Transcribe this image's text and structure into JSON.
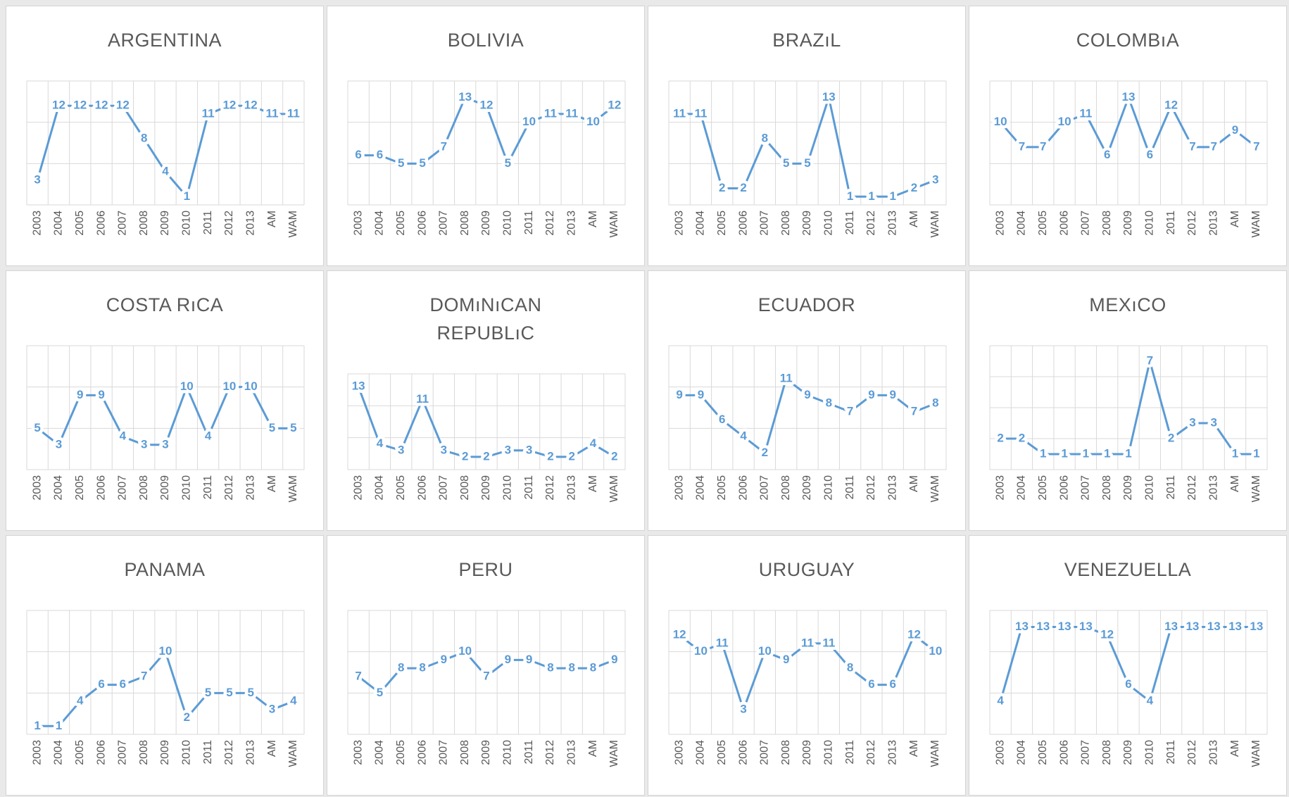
{
  "chart_data": [
    {
      "type": "line",
      "title": "ARGENTINA",
      "color": "#5b9bd5",
      "ylim": [
        0,
        15
      ],
      "yticks": [
        0,
        5,
        10,
        15
      ],
      "grid": true,
      "categories": [
        "2003",
        "2004",
        "2005",
        "2006",
        "2007",
        "2008",
        "2009",
        "2010",
        "2011",
        "2012",
        "2013",
        "AM",
        "WAM"
      ],
      "values": [
        3,
        12,
        12,
        12,
        12,
        8,
        4,
        1,
        11,
        12,
        12,
        11,
        11
      ]
    },
    {
      "type": "line",
      "title": "BOLIVIA",
      "color": "#5b9bd5",
      "ylim": [
        0,
        15
      ],
      "yticks": [
        0,
        5,
        10,
        15
      ],
      "grid": true,
      "categories": [
        "2003",
        "2004",
        "2005",
        "2006",
        "2007",
        "2008",
        "2009",
        "2010",
        "2011",
        "2012",
        "2013",
        "AM",
        "WAM"
      ],
      "values": [
        6,
        6,
        5,
        5,
        7,
        13,
        12,
        5,
        10,
        11,
        11,
        10,
        12
      ]
    },
    {
      "type": "line",
      "title": "BRAZıL",
      "color": "#5b9bd5",
      "ylim": [
        0,
        15
      ],
      "yticks": [
        0,
        5,
        10,
        15
      ],
      "grid": true,
      "categories": [
        "2003",
        "2004",
        "2005",
        "2006",
        "2007",
        "2008",
        "2009",
        "2010",
        "2011",
        "2012",
        "2013",
        "AM",
        "WAM"
      ],
      "values": [
        11,
        11,
        2,
        2,
        8,
        5,
        5,
        13,
        1,
        1,
        1,
        2,
        3
      ]
    },
    {
      "type": "line",
      "title": "COLOMBıA",
      "color": "#5b9bd5",
      "ylim": [
        0,
        15
      ],
      "yticks": [
        0,
        5,
        10,
        15
      ],
      "grid": true,
      "categories": [
        "2003",
        "2004",
        "2005",
        "2006",
        "2007",
        "2008",
        "2009",
        "2010",
        "2011",
        "2012",
        "2013",
        "AM",
        "WAM"
      ],
      "values": [
        10,
        7,
        7,
        10,
        11,
        6,
        13,
        6,
        12,
        7,
        7,
        9,
        7
      ]
    },
    {
      "type": "line",
      "title": "COSTA RıCA",
      "color": "#5b9bd5",
      "ylim": [
        0,
        15
      ],
      "yticks": [
        0,
        5,
        10,
        15
      ],
      "grid": true,
      "categories": [
        "2003",
        "2004",
        "2005",
        "2006",
        "2007",
        "2008",
        "2009",
        "2010",
        "2011",
        "2012",
        "2013",
        "AM",
        "WAM"
      ],
      "values": [
        5,
        3,
        9,
        9,
        4,
        3,
        3,
        10,
        4,
        10,
        10,
        5,
        5
      ]
    },
    {
      "type": "line",
      "title": "DOMıNıCAN REPUBLıC",
      "color": "#5b9bd5",
      "ylim": [
        0,
        15
      ],
      "yticks": [
        0,
        5,
        10,
        15
      ],
      "grid": true,
      "categories": [
        "2003",
        "2004",
        "2005",
        "2006",
        "2007",
        "2008",
        "2009",
        "2010",
        "2011",
        "2012",
        "2013",
        "AM",
        "WAM"
      ],
      "values": [
        13,
        4,
        3,
        11,
        3,
        2,
        2,
        3,
        3,
        2,
        2,
        4,
        2
      ]
    },
    {
      "type": "line",
      "title": "ECUADOR",
      "color": "#5b9bd5",
      "ylim": [
        0,
        15
      ],
      "yticks": [
        0,
        5,
        10,
        15
      ],
      "grid": true,
      "categories": [
        "2003",
        "2004",
        "2005",
        "2006",
        "2007",
        "2008",
        "2009",
        "2010",
        "2011",
        "2012",
        "2013",
        "AM",
        "WAM"
      ],
      "values": [
        9,
        9,
        6,
        4,
        2,
        11,
        9,
        8,
        7,
        9,
        9,
        7,
        8
      ]
    },
    {
      "type": "line",
      "title": "MEXıCO",
      "color": "#5b9bd5",
      "ylim": [
        0,
        8
      ],
      "yticks": [
        0,
        2,
        4,
        6,
        8
      ],
      "grid": true,
      "categories": [
        "2003",
        "2004",
        "2005",
        "2006",
        "2007",
        "2008",
        "2009",
        "2010",
        "2011",
        "2012",
        "2013",
        "AM",
        "WAM"
      ],
      "values": [
        2,
        2,
        1,
        1,
        1,
        1,
        1,
        7,
        2,
        3,
        3,
        1,
        1
      ]
    },
    {
      "type": "line",
      "title": "PANAMA",
      "color": "#5b9bd5",
      "ylim": [
        0,
        15
      ],
      "yticks": [
        0,
        5,
        10,
        15
      ],
      "grid": true,
      "categories": [
        "2003",
        "2004",
        "2005",
        "2006",
        "2007",
        "2008",
        "2009",
        "2010",
        "2011",
        "2012",
        "2013",
        "AM",
        "WAM"
      ],
      "values": [
        1,
        1,
        4,
        6,
        6,
        7,
        10,
        2,
        5,
        5,
        5,
        3,
        4
      ]
    },
    {
      "type": "line",
      "title": "PERU",
      "color": "#5b9bd5",
      "ylim": [
        0,
        15
      ],
      "yticks": [
        0,
        5,
        10,
        15
      ],
      "grid": true,
      "categories": [
        "2003",
        "2004",
        "2005",
        "2006",
        "2007",
        "2008",
        "2009",
        "2010",
        "2011",
        "2012",
        "2013",
        "AM",
        "WAM"
      ],
      "values": [
        7,
        5,
        8,
        8,
        9,
        10,
        7,
        9,
        9,
        8,
        8,
        8,
        9
      ]
    },
    {
      "type": "line",
      "title": "URUGUAY",
      "color": "#5b9bd5",
      "ylim": [
        0,
        15
      ],
      "yticks": [
        0,
        5,
        10,
        15
      ],
      "grid": true,
      "categories": [
        "2003",
        "2004",
        "2005",
        "2006",
        "2007",
        "2008",
        "2009",
        "2010",
        "2011",
        "2012",
        "2013",
        "AM",
        "WAM"
      ],
      "values": [
        12,
        10,
        11,
        3,
        10,
        9,
        11,
        11,
        8,
        6,
        6,
        12,
        10
      ]
    },
    {
      "type": "line",
      "title": "VENEZUELLA",
      "color": "#5b9bd5",
      "ylim": [
        0,
        15
      ],
      "yticks": [
        0,
        5,
        10,
        15
      ],
      "grid": true,
      "categories": [
        "2003",
        "2004",
        "2005",
        "2006",
        "2007",
        "2008",
        "2009",
        "2010",
        "2011",
        "2012",
        "2013",
        "AM",
        "WAM"
      ],
      "values": [
        4,
        13,
        13,
        13,
        13,
        12,
        6,
        4,
        13,
        13,
        13,
        13,
        13
      ]
    }
  ]
}
